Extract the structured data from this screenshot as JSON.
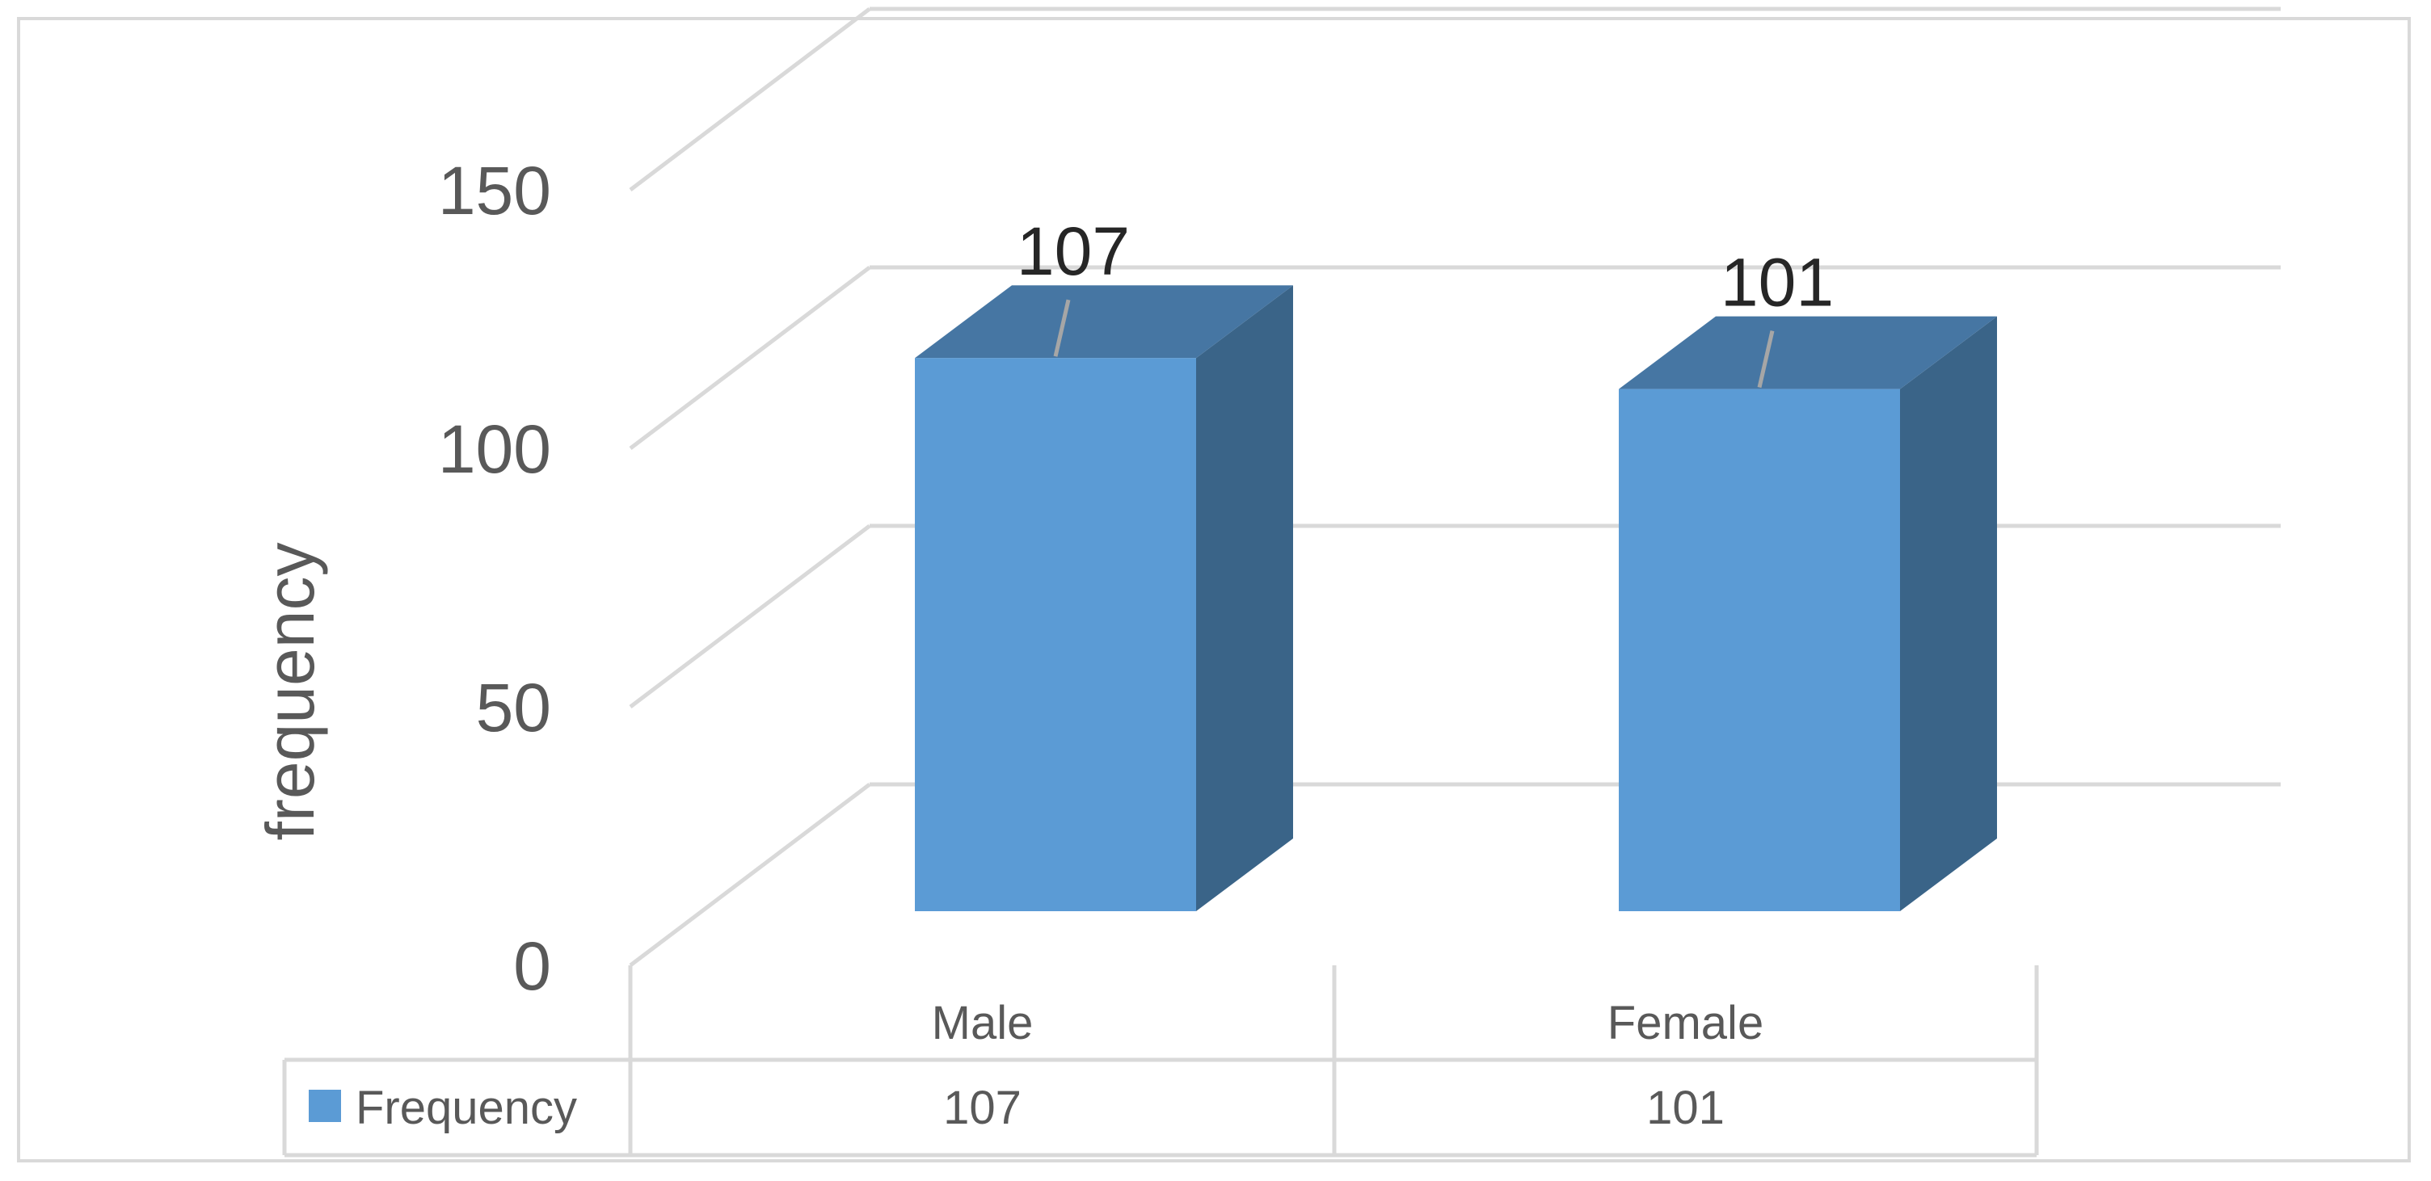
{
  "chart_data": {
    "type": "bar",
    "categories": [
      "Male",
      "Female"
    ],
    "series": [
      {
        "name": "Frequency",
        "values": [
          107,
          101
        ]
      }
    ],
    "data_labels": [
      "107",
      "101"
    ],
    "title": "",
    "xlabel": "",
    "ylabel": "frequency",
    "ylim": [
      0,
      150
    ],
    "yticks": [
      0,
      50,
      100,
      150
    ],
    "ytick_labels": [
      "0",
      "50",
      "100",
      "150"
    ],
    "style": "3d-column",
    "grid": true,
    "data_table": true,
    "legend_placement": "data-table-row-header",
    "colors": {
      "front": "#5b9bd5",
      "top": "#4676a3",
      "side": "#3a6488",
      "grid": "#d9d9d9",
      "text": "#595959"
    }
  }
}
